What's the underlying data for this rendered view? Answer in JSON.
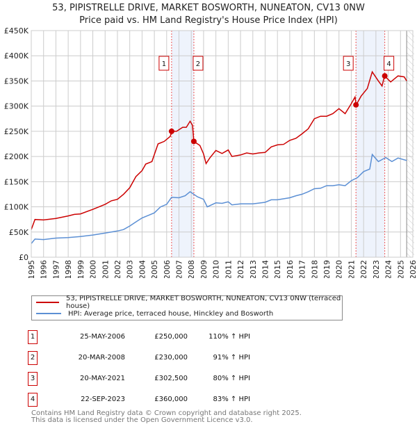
{
  "chart_data": {
    "type": "line",
    "title": "53, PIPISTRELLE DRIVE, MARKET BOSWORTH, NUNEATON, CV13 0NW",
    "subtitle": "Price paid vs. HM Land Registry's House Price Index (HPI)",
    "xlim": [
      1995,
      2026
    ],
    "ylim": [
      0,
      450000
    ],
    "x_ticks": [
      "1995",
      "1996",
      "1997",
      "1998",
      "1999",
      "2000",
      "2001",
      "2002",
      "2003",
      "2004",
      "2005",
      "2006",
      "2007",
      "2008",
      "2009",
      "2010",
      "2011",
      "2012",
      "2013",
      "2014",
      "2015",
      "2016",
      "2017",
      "2018",
      "2019",
      "2020",
      "2021",
      "2022",
      "2023",
      "2024",
      "2025",
      "2026"
    ],
    "y_ticks": [
      {
        "v": 0,
        "label": "£0"
      },
      {
        "v": 50000,
        "label": "£50K"
      },
      {
        "v": 100000,
        "label": "£100K"
      },
      {
        "v": 150000,
        "label": "£150K"
      },
      {
        "v": 200000,
        "label": "£200K"
      },
      {
        "v": 250000,
        "label": "£250K"
      },
      {
        "v": 300000,
        "label": "£300K"
      },
      {
        "v": 350000,
        "label": "£350K"
      },
      {
        "v": 400000,
        "label": "£400K"
      },
      {
        "v": 450000,
        "label": "£450K"
      }
    ],
    "grid": true,
    "forecast_start": 2025.5,
    "series": [
      {
        "name": "53, PIPISTRELLE DRIVE, MARKET BOSWORTH, NUNEATON, CV13 0NW (terraced house)",
        "color": "#cc0000",
        "x": [
          1995,
          1995.3,
          1996,
          1997,
          1998,
          1998.5,
          1999,
          2000,
          2000.5,
          2001,
          2001.5,
          2002,
          2002.5,
          2003,
          2003.5,
          2004,
          2004.3,
          2004.8,
          2005.3,
          2005.8,
          2006.3,
          2006.4,
          2006.8,
          2007.3,
          2007.6,
          2007.9,
          2008.1,
          2008.2,
          2008.7,
          2009.0,
          2009.2,
          2009.5,
          2010,
          2010.5,
          2011,
          2011.3,
          2012,
          2012.5,
          2013,
          2013.5,
          2014,
          2014.5,
          2015,
          2015.5,
          2016,
          2016.5,
          2017,
          2017.5,
          2018,
          2018.5,
          2019,
          2019.5,
          2020,
          2020.5,
          2021,
          2021.3,
          2021.4,
          2021.8,
          2022.3,
          2022.7,
          2023.2,
          2023.5,
          2023.7,
          2024.2,
          2024.8,
          2025.3,
          2025.5
        ],
        "y": [
          55000,
          75000,
          74000,
          77000,
          82000,
          85000,
          86000,
          95000,
          100000,
          105000,
          112000,
          115000,
          125000,
          138000,
          160000,
          172000,
          185000,
          190000,
          225000,
          230000,
          240000,
          250000,
          250000,
          258000,
          258000,
          270000,
          262000,
          230000,
          222000,
          205000,
          186000,
          197000,
          212000,
          206000,
          213000,
          200000,
          203000,
          207000,
          205000,
          207000,
          208000,
          219000,
          223000,
          224000,
          232000,
          236000,
          245000,
          255000,
          275000,
          280000,
          280000,
          285000,
          295000,
          285000,
          305000,
          318000,
          302500,
          320000,
          335000,
          368000,
          350000,
          340000,
          360000,
          348000,
          360000,
          358000,
          350000
        ]
      },
      {
        "name": "HPI: Average price, terraced house, Hinckley and Bosworth",
        "color": "#5b8fd4",
        "x": [
          1995,
          1995.3,
          1996,
          1997,
          1998,
          1999,
          2000,
          2001,
          2002,
          2002.5,
          2003,
          2003.5,
          2004,
          2004.5,
          2005,
          2005.5,
          2006,
          2006.4,
          2007,
          2007.5,
          2007.9,
          2008.5,
          2009,
          2009.3,
          2010,
          2010.5,
          2011,
          2011.3,
          2012,
          2013,
          2014,
          2014.5,
          2015,
          2016,
          2016.5,
          2017,
          2017.5,
          2018,
          2018.5,
          2019,
          2019.5,
          2020,
          2020.5,
          2021,
          2021.5,
          2022,
          2022.5,
          2022.7,
          2023.2,
          2023.8,
          2024.3,
          2024.8,
          2025.5
        ],
        "y": [
          27000,
          36000,
          35000,
          38000,
          39000,
          41000,
          44000,
          48000,
          52000,
          55000,
          62000,
          70000,
          78000,
          83000,
          88000,
          100000,
          105000,
          119000,
          118000,
          122000,
          130000,
          120000,
          115000,
          100000,
          108000,
          107000,
          110000,
          104000,
          106000,
          106000,
          109000,
          114000,
          114000,
          118000,
          122000,
          125000,
          130000,
          136000,
          137000,
          142000,
          142000,
          144000,
          142000,
          152000,
          158000,
          170000,
          175000,
          204000,
          190000,
          198000,
          190000,
          197000,
          192000
        ]
      }
    ],
    "sales": [
      {
        "id": "1",
        "x": 2006.4,
        "price": 250000,
        "date": "25-MAY-2006",
        "price_label": "£250,000",
        "hpi": "110% ↑ HPI"
      },
      {
        "id": "2",
        "x": 2008.21,
        "price": 230000,
        "date": "20-MAR-2008",
        "price_label": "£230,000",
        "hpi": "91% ↑ HPI"
      },
      {
        "id": "3",
        "x": 2021.38,
        "price": 302500,
        "date": "20-MAY-2021",
        "price_label": "£302,500",
        "hpi": "80% ↑ HPI"
      },
      {
        "id": "4",
        "x": 2023.72,
        "price": 360000,
        "date": "22-SEP-2023",
        "price_label": "£360,000",
        "hpi": "83% ↑ HPI"
      }
    ],
    "shaded": [
      [
        2006.4,
        2008.21
      ],
      [
        2021.38,
        2023.72
      ]
    ]
  },
  "footer": {
    "line1": "Contains HM Land Registry data © Crown copyright and database right 2025.",
    "line2": "This data is licensed under the Open Government Licence v3.0."
  }
}
